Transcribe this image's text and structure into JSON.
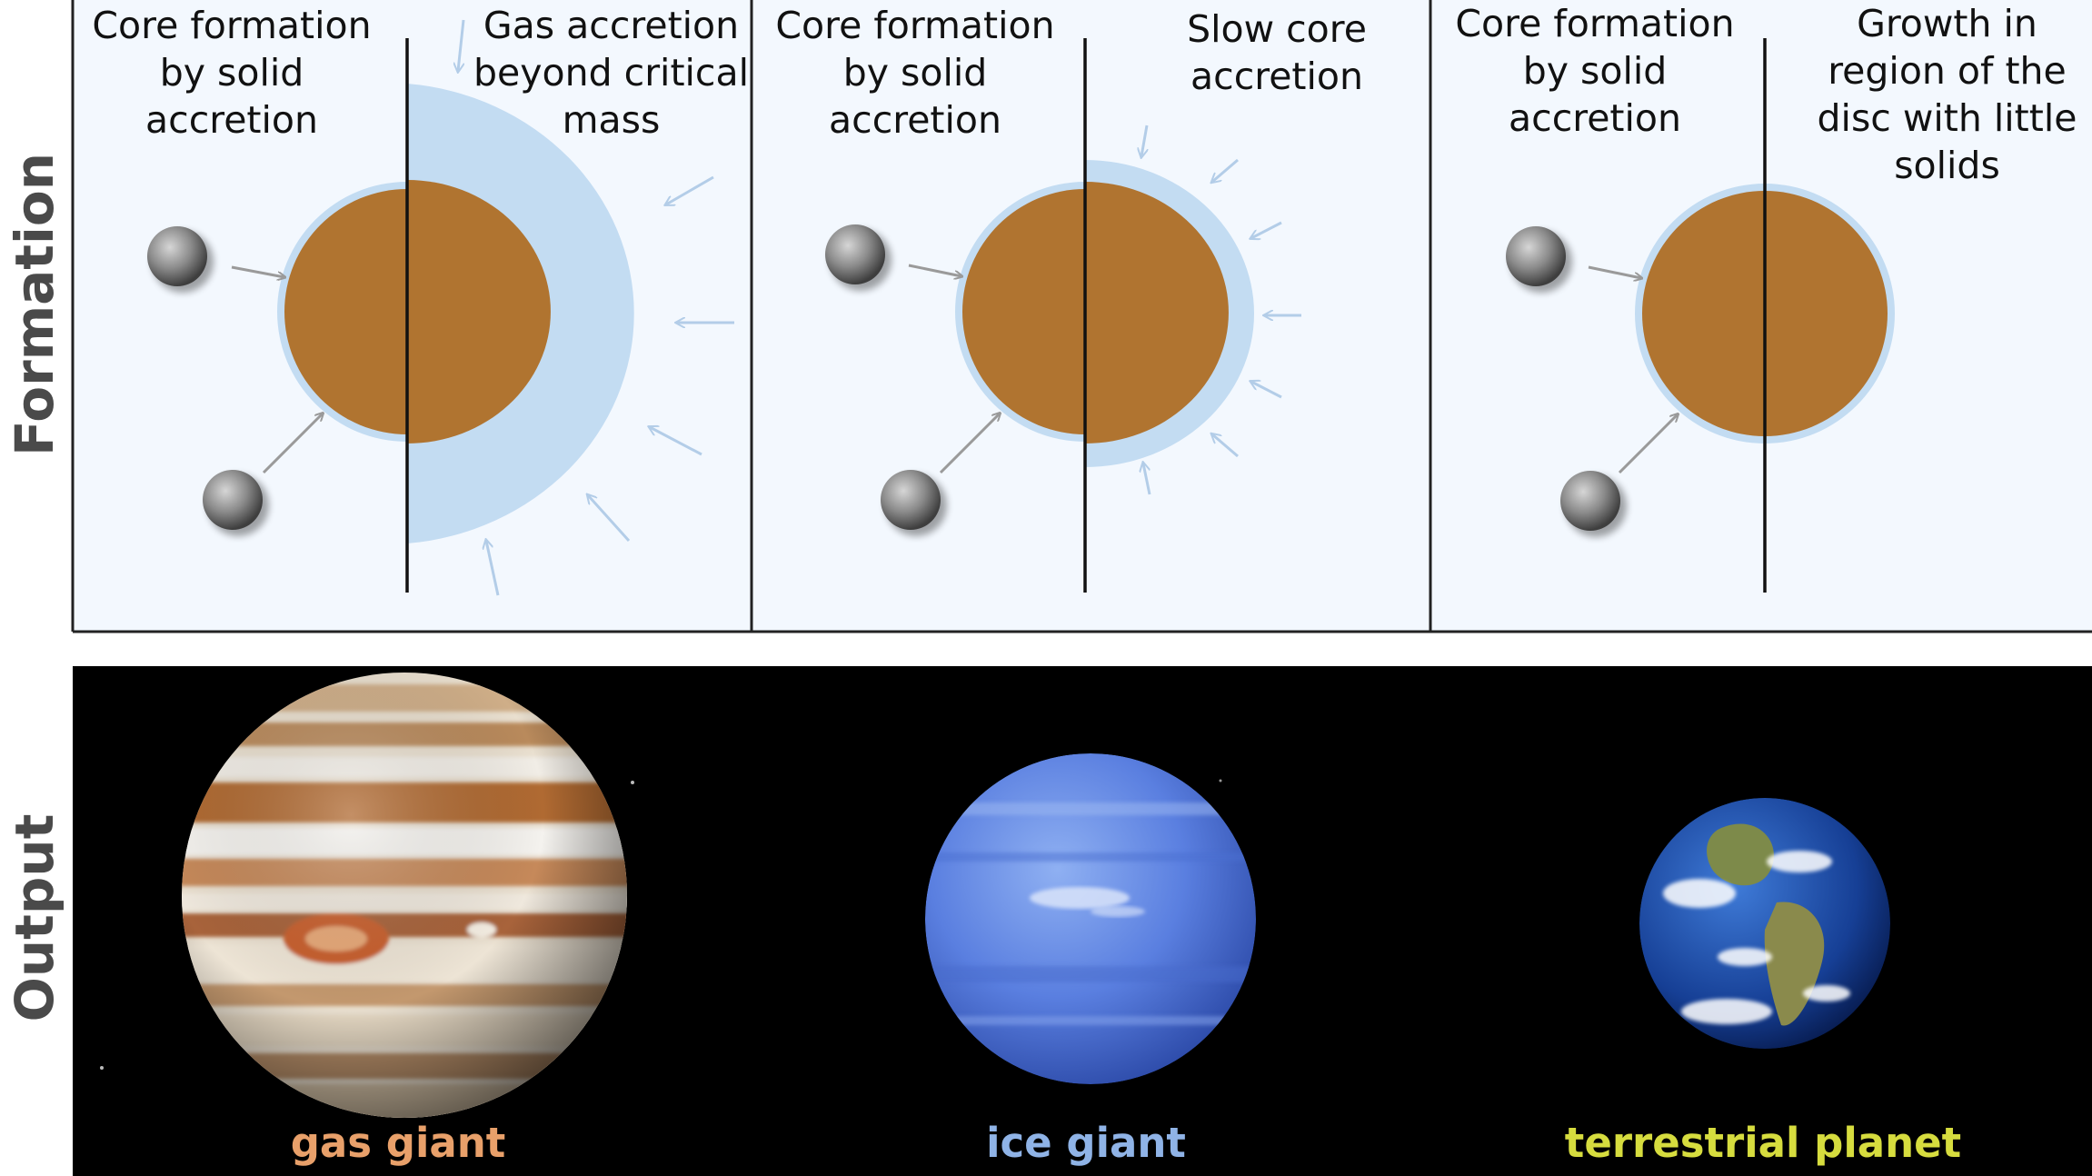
{
  "row_labels": {
    "formation": "Formation",
    "output": "Output"
  },
  "formation": [
    {
      "left_caption": "Core formation\nby solid\naccretion",
      "right_caption": "Gas accretion\nbeyond critical\nmass",
      "envelope": "thick-gas"
    },
    {
      "left_caption": "Core formation\nby solid\naccretion",
      "right_caption": "Slow core\naccretion",
      "envelope": "thin-ice"
    },
    {
      "left_caption": "Core formation\nby solid\naccretion",
      "right_caption": "Growth in\nregion of the\ndisc with little\nsolids",
      "envelope": "none"
    }
  ],
  "output": [
    {
      "label": "gas giant",
      "color": "#e8a06a",
      "planet": "jupiter-image"
    },
    {
      "label": "ice giant",
      "color": "#8fb3e6",
      "planet": "neptune-image"
    },
    {
      "label": "terrestrial planet",
      "color": "#d6dc3e",
      "planet": "earth-image"
    }
  ],
  "colors": {
    "core": "#b07430",
    "envelope": "#c3dcf2",
    "panel_bg": "#f3f8fe",
    "space": "#000000"
  }
}
